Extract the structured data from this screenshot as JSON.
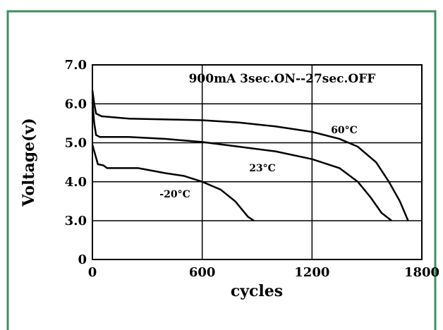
{
  "chart_data": {
    "type": "line",
    "annotation": "900mA  3sec.ON--27sec.OFF",
    "x_label": "cycles",
    "y_label": "Voltage(v)",
    "xlim": [
      0,
      1800
    ],
    "xticks": [
      0,
      600,
      1200,
      1800
    ],
    "ylim": [
      0,
      7
    ],
    "y_axis_break": [
      0,
      3
    ],
    "yticks": [
      0,
      {
        "value": 3,
        "label": "3.0"
      },
      {
        "value": 4,
        "label": "4.0"
      },
      {
        "value": 5,
        "label": "5.0"
      },
      {
        "value": 6,
        "label": "6.0"
      },
      {
        "value": 7,
        "label": "7.0"
      }
    ],
    "grid": true,
    "series": [
      {
        "name": "60°C",
        "color": "#000000",
        "x": [
          0,
          10,
          20,
          50,
          200,
          400,
          600,
          800,
          1000,
          1200,
          1350,
          1450,
          1550,
          1620,
          1680,
          1725
        ],
        "values": [
          6.35,
          6.0,
          5.75,
          5.68,
          5.62,
          5.6,
          5.58,
          5.52,
          5.42,
          5.28,
          5.1,
          4.9,
          4.5,
          4.0,
          3.5,
          3.0
        ]
      },
      {
        "name": "23°C",
        "color": "#000000",
        "x": [
          0,
          10,
          20,
          40,
          200,
          400,
          600,
          800,
          1000,
          1200,
          1350,
          1450,
          1520,
          1580,
          1635
        ],
        "values": [
          6.05,
          5.5,
          5.2,
          5.15,
          5.15,
          5.1,
          5.02,
          4.9,
          4.78,
          4.58,
          4.35,
          4.0,
          3.6,
          3.2,
          3.0
        ]
      },
      {
        "name": "-20°C",
        "color": "#000000",
        "x": [
          0,
          15,
          30,
          60,
          80,
          250,
          400,
          500,
          600,
          700,
          780,
          850,
          883
        ],
        "values": [
          4.95,
          4.7,
          4.45,
          4.42,
          4.35,
          4.35,
          4.22,
          4.15,
          4.0,
          3.8,
          3.5,
          3.1,
          3.0
        ]
      }
    ]
  }
}
